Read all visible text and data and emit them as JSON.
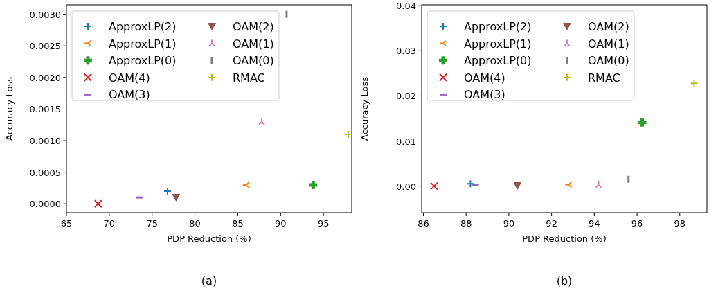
{
  "chart_data": [
    {
      "type": "scatter",
      "xlabel": "PDP Reduction (%)",
      "ylabel": "Accuracy Loss",
      "xlim": [
        65,
        98.3
      ],
      "xticks": [
        65,
        70,
        75,
        80,
        85,
        90,
        95
      ],
      "ylim": [
        -0.00014,
        0.00315
      ],
      "yticks": [
        {
          "value": 0,
          "label": "0.0000"
        },
        {
          "value": 0.0005,
          "label": "0.0005"
        },
        {
          "value": 0.001,
          "label": "0.0010"
        },
        {
          "value": 0.0015,
          "label": "0.0015"
        },
        {
          "value": 0.002,
          "label": "0.0020"
        },
        {
          "value": 0.0025,
          "label": "0.0025"
        },
        {
          "value": 0.003,
          "label": "0.0030"
        }
      ],
      "legend": "top left",
      "grid": false,
      "annotations": [
        "(a)"
      ],
      "series": [
        {
          "name": "ApproxLP(2)",
          "color": "#1f77b4",
          "marker": "cross",
          "x": [
            76.8
          ],
          "values": [
            0.0002
          ]
        },
        {
          "name": "ApproxLP(1)",
          "color": "#ff7f0e",
          "marker": "cross",
          "x": [
            86.0
          ],
          "values": [
            0.0003
          ]
        },
        {
          "name": "ApproxLP(0)",
          "color": "#2ca02c",
          "marker": "cross",
          "x": [
            93.8
          ],
          "values": [
            0.0003
          ]
        },
        {
          "name": "OAM(4)",
          "color": "#d62728",
          "marker": "cross",
          "x": [
            68.7
          ],
          "values": [
            0
          ]
        },
        {
          "name": "OAM(3)",
          "color": "#9467bd",
          "x": [
            73.5
          ],
          "values": [
            0.0001
          ]
        },
        {
          "name": "OAM(2)",
          "color": "#8c564b",
          "marker": "triangle",
          "x": [
            77.8
          ],
          "values": [
            0.0001
          ]
        },
        {
          "name": "OAM(1)",
          "color": "#e377c2",
          "marker": "cross",
          "x": [
            87.8
          ],
          "values": [
            0.0013
          ]
        },
        {
          "name": "OAM(0)",
          "color": "#7f7f7f",
          "x": [
            90.7
          ],
          "values": [
            0.003
          ]
        },
        {
          "name": "RMAC",
          "color": "#bcbd22",
          "marker": "cross",
          "x": [
            97.9
          ],
          "values": [
            0.0011
          ]
        }
      ]
    },
    {
      "type": "scatter",
      "xlabel": "PDP Reduction (%)",
      "ylabel": "Accuracy Loss",
      "xlim": [
        85.92,
        99.27
      ],
      "xticks": [
        86,
        88,
        90,
        92,
        94,
        96,
        98
      ],
      "ylim": [
        -0.0059,
        0.0402
      ],
      "yticks": [
        {
          "value": 0,
          "label": "0.00"
        },
        {
          "value": 0.01,
          "label": "0.01"
        },
        {
          "value": 0.02,
          "label": "0.02"
        },
        {
          "value": 0.03,
          "label": "0.03"
        },
        {
          "value": 0.04,
          "label": "0.04"
        }
      ],
      "legend": "top left",
      "grid": false,
      "annotations": [
        "(b)"
      ],
      "series": [
        {
          "name": "ApproxLP(2)",
          "color": "#1f77b4",
          "marker": "cross",
          "x": [
            88.2
          ],
          "values": [
            0.0005
          ]
        },
        {
          "name": "ApproxLP(1)",
          "color": "#ff7f0e",
          "marker": "cross",
          "x": [
            92.8
          ],
          "values": [
            0.0003
          ]
        },
        {
          "name": "ApproxLP(0)",
          "color": "#2ca02c",
          "marker": "cross",
          "x": [
            96.24
          ],
          "values": [
            0.0141
          ]
        },
        {
          "name": "OAM(4)",
          "color": "#d62728",
          "marker": "cross",
          "x": [
            86.5
          ],
          "values": [
            0
          ]
        },
        {
          "name": "OAM(3)",
          "color": "#9467bd",
          "x": [
            88.43
          ],
          "values": [
            0.0002
          ]
        },
        {
          "name": "OAM(2)",
          "color": "#8c564b",
          "marker": "triangle",
          "x": [
            90.4
          ],
          "values": [
            0.0001
          ]
        },
        {
          "name": "OAM(1)",
          "color": "#e377c2",
          "marker": "cross",
          "x": [
            94.2
          ],
          "values": [
            0.0003
          ]
        },
        {
          "name": "OAM(0)",
          "color": "#7f7f7f",
          "x": [
            95.6
          ],
          "values": [
            0.0015
          ]
        },
        {
          "name": "RMAC",
          "color": "#bcbd22",
          "marker": "cross",
          "x": [
            98.67
          ],
          "values": [
            0.0228
          ]
        }
      ]
    }
  ]
}
